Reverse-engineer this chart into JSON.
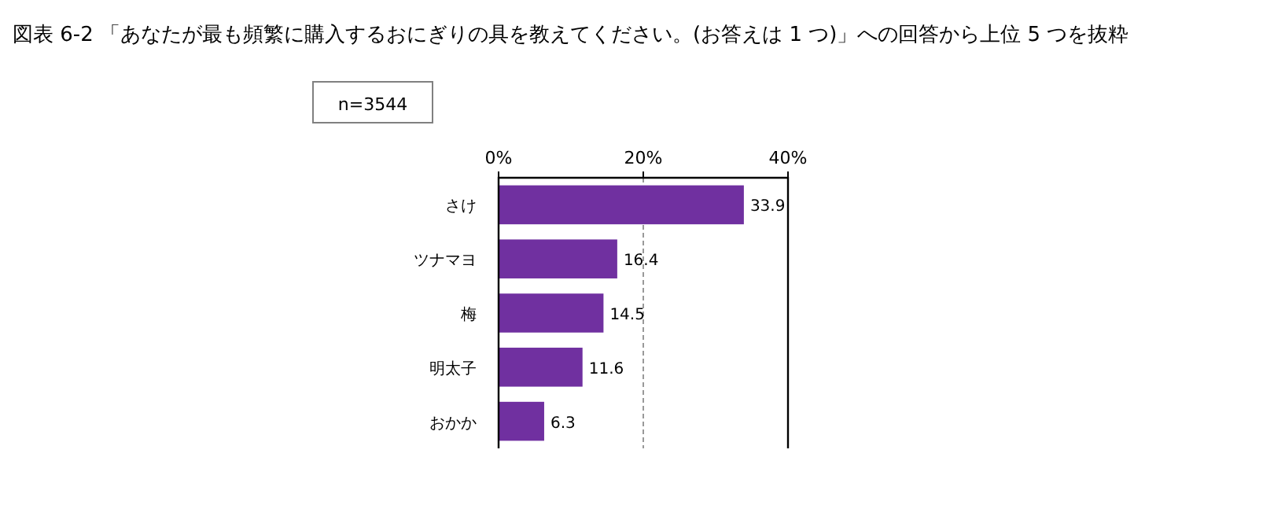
{
  "chart_data": {
    "type": "bar",
    "orientation": "horizontal",
    "title": "図表 6-2 「あなたが最も頻繁に購入するおにぎりの具を教えてください。(お答えは 1 つ)」への回答から上位 5 つを抜粋",
    "annotations": [
      "n=3544"
    ],
    "categories": [
      "さけ",
      "ツナマヨ",
      "梅",
      "明太子",
      "おかか"
    ],
    "values": [
      33.9,
      16.4,
      14.5,
      11.6,
      6.3
    ],
    "color": "#7030a0",
    "xlim": [
      0,
      40
    ],
    "xticks": [
      {
        "value": 0,
        "label": "0%"
      },
      {
        "value": 20,
        "label": "20%"
      },
      {
        "value": 40,
        "label": "40%"
      }
    ],
    "grid": "x",
    "data_labels": true
  }
}
